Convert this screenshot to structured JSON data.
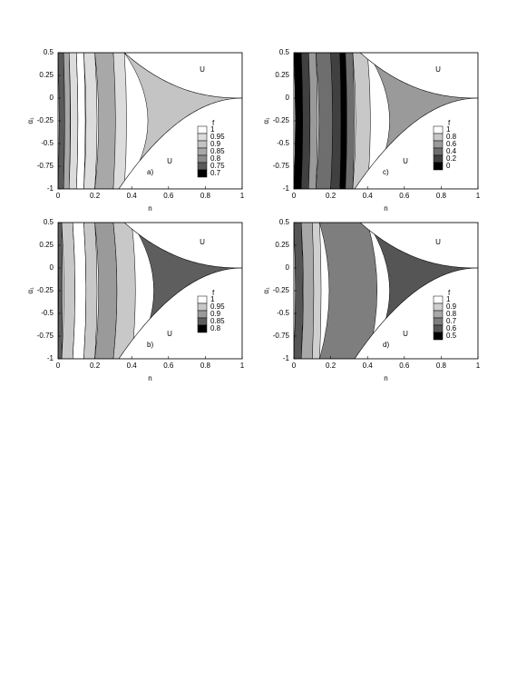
{
  "chart_data": [
    {
      "type": "contour",
      "panel_label": "a)",
      "xlabel": "n",
      "ylabel": "α₁",
      "xlim": [
        0,
        1
      ],
      "ylim": [
        -1,
        0.5
      ],
      "xticks": [
        0,
        0.2,
        0.4,
        0.6,
        0.8,
        1
      ],
      "yticks": [
        0.5,
        0.25,
        0,
        -0.25,
        -0.5,
        -0.75,
        -1
      ],
      "legend_title": "f",
      "levels": [
        1,
        0.95,
        0.9,
        0.85,
        0.8,
        0.75,
        0.7
      ],
      "colors": [
        "#ffffff",
        "#dcdcdc",
        "#c4c4c4",
        "#a8a8a8",
        "#8c8c8c",
        "#5a5a5a",
        "#000000"
      ],
      "annotations": [
        "U",
        "U"
      ]
    },
    {
      "type": "contour",
      "panel_label": "b)",
      "xlabel": "n",
      "ylabel": "α₁",
      "xlim": [
        0,
        1
      ],
      "ylim": [
        -1,
        0.5
      ],
      "xticks": [
        0,
        0.2,
        0.4,
        0.6,
        0.8,
        1
      ],
      "yticks": [
        0.5,
        0.25,
        0,
        -0.25,
        -0.5,
        -0.75,
        -1
      ],
      "legend_title": "f",
      "levels": [
        1,
        0.95,
        0.9,
        0.85,
        0.8
      ],
      "colors": [
        "#ffffff",
        "#c8c8c8",
        "#9a9a9a",
        "#5e5e5e",
        "#000000"
      ],
      "annotations": [
        "U",
        "U"
      ]
    },
    {
      "type": "contour",
      "panel_label": "c)",
      "xlabel": "n",
      "ylabel": "α₁",
      "xlim": [
        0,
        1
      ],
      "ylim": [
        -1,
        0.5
      ],
      "xticks": [
        0,
        0.2,
        0.4,
        0.6,
        0.8,
        1
      ],
      "yticks": [
        0.5,
        0.25,
        0,
        -0.25,
        -0.5,
        -0.75,
        -1
      ],
      "legend_title": "f",
      "levels": [
        1,
        0.8,
        0.6,
        0.4,
        0.2,
        0
      ],
      "colors": [
        "#ffffff",
        "#c8c8c8",
        "#9a9a9a",
        "#6e6e6e",
        "#404040",
        "#000000"
      ],
      "annotations": [
        "U",
        "U"
      ]
    },
    {
      "type": "contour",
      "panel_label": "d)",
      "xlabel": "n",
      "ylabel": "α₁",
      "xlim": [
        0,
        1
      ],
      "ylim": [
        -1,
        0.5
      ],
      "xticks": [
        0,
        0.2,
        0.4,
        0.6,
        0.8,
        1
      ],
      "yticks": [
        0.5,
        0.25,
        0,
        -0.25,
        -0.5,
        -0.75,
        -1
      ],
      "legend_title": "f",
      "levels": [
        1,
        0.9,
        0.8,
        0.7,
        0.6,
        0.5
      ],
      "colors": [
        "#ffffff",
        "#cfcfcf",
        "#a8a8a8",
        "#7e7e7e",
        "#555555",
        "#000000"
      ],
      "annotations": [
        "U",
        "U"
      ]
    }
  ]
}
